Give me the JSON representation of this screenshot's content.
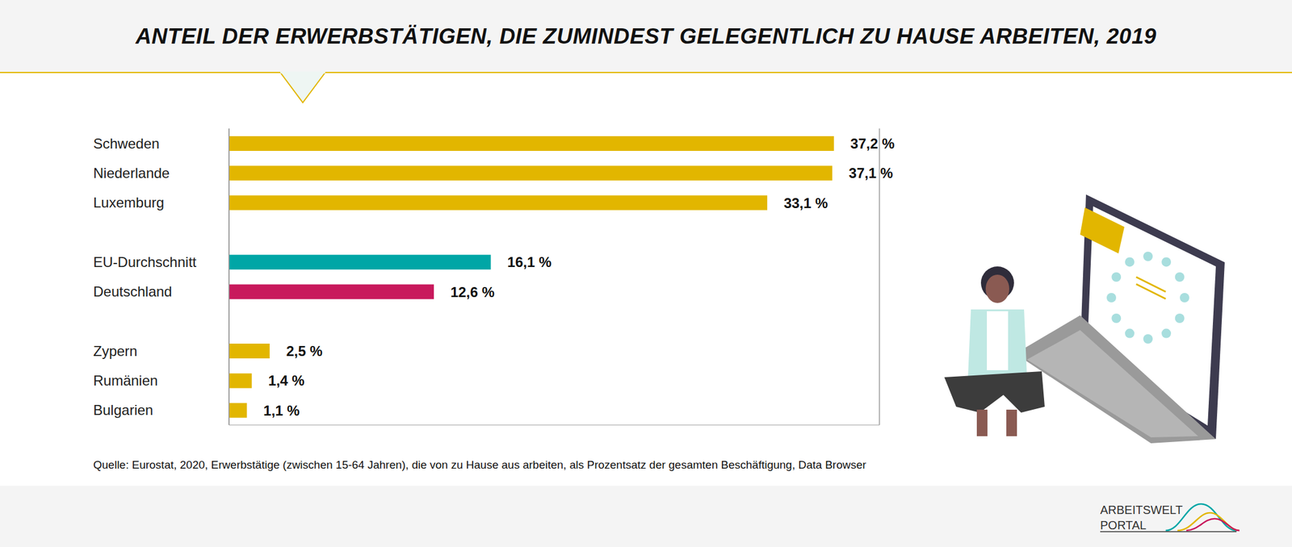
{
  "chart_data": {
    "type": "bar",
    "orientation": "horizontal",
    "title": "ANTEIL DER ERWERBSTÄTIGEN, DIE ZUMINDEST GELEGENTLICH ZU HAUSE ARBEITEN, 2019",
    "categories": [
      "Schweden",
      "Niederlande",
      "Luxemburg",
      null,
      "EU-Durchschnitt",
      "Deutschland",
      null,
      "Zypern",
      "Rumänien",
      "Bulgarien"
    ],
    "values": [
      37.2,
      37.1,
      33.1,
      null,
      16.1,
      12.6,
      null,
      2.5,
      1.4,
      1.1
    ],
    "value_labels": [
      "37,2 %",
      "37,1 %",
      "33,1 %",
      null,
      "16,1 %",
      "12,6 %",
      null,
      "2,5 %",
      "1,4 %",
      "1,1 %"
    ],
    "colors": [
      "#e2b600",
      "#e2b600",
      "#e2b600",
      null,
      "#00a6a6",
      "#c8195c",
      null,
      "#e2b600",
      "#e2b600",
      "#e2b600"
    ],
    "xlim": [
      0,
      40
    ],
    "xticks": [
      0,
      10.6,
      21.2,
      31.8
    ],
    "grid": true,
    "tick_labels": "y",
    "data_labels": true,
    "source": "Quelle: Eurostat, 2020, Erwerbstätige (zwischen 15-64 Jahren), die von zu Hause aus arbeiten, als Prozentsatz der gesamten Beschäftigung, Data Browser",
    "logo": [
      "ARBEITSWELT",
      "PORTAL"
    ]
  }
}
